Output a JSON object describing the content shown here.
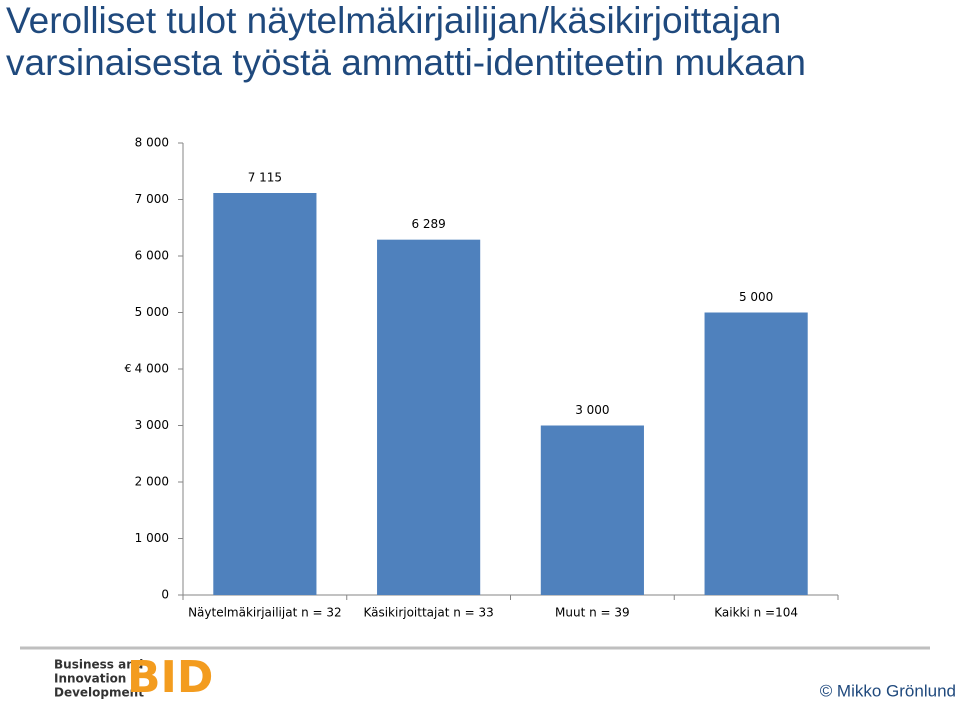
{
  "chart_data": {
    "type": "bar",
    "title": "Verolliset tulot näytelmäkirjailijan/käsikirjoittajan varsinaisesta työstä ammatti-identiteetin mukaan",
    "y_label": "€",
    "categories": [
      "Näytelmäkirjailijat n = 32",
      "Käsikirjoittajat n = 33",
      "Muut n = 39",
      "Kaikki n =104"
    ],
    "values": [
      7115,
      6289,
      3000,
      5000
    ],
    "value_labels": [
      "7 115",
      "6 289",
      "3 000",
      "5 000"
    ],
    "color": "#4f81bd",
    "ylim": [
      0,
      8000
    ],
    "yticks": [
      0,
      {
        "value": 1000,
        "label": "1 000"
      },
      {
        "value": 2000,
        "label": "2 000"
      },
      {
        "value": 3000,
        "label": "3 000"
      },
      {
        "value": 4000,
        "label": "4 000"
      },
      {
        "value": 5000,
        "label": "5 000"
      },
      {
        "value": 6000,
        "label": "6 000"
      },
      {
        "value": 7000,
        "label": "7 000"
      },
      {
        "value": 8000,
        "label": "8 000"
      }
    ],
    "grid": false
  },
  "footer": {
    "logo_lines": [
      "Business and",
      "Innovation",
      "Development"
    ],
    "logo_mark": "BID",
    "copyright": "© Mikko Grönlund"
  }
}
